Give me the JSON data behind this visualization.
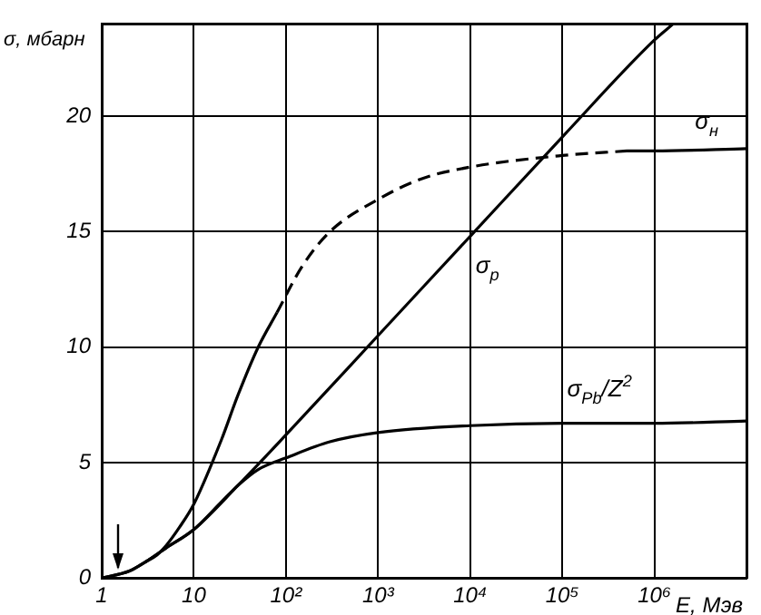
{
  "chart_data": {
    "type": "line",
    "xlabel": "E, Мэв",
    "ylabel": "σ, мбарн",
    "log": "x",
    "grid": true,
    "legend": false,
    "marker": "none",
    "xlim": [
      1,
      10000000
    ],
    "xticks": [
      1,
      10,
      {
        "value": 100,
        "label": "10²"
      },
      {
        "value": 1000,
        "label": "10³"
      },
      {
        "value": 10000,
        "label": "10⁴"
      },
      {
        "value": 100000,
        "label": "10⁵"
      },
      {
        "value": 1000000,
        "label": "10⁶"
      },
      {
        "value": 10000000,
        "label": null
      }
    ],
    "ylim": [
      0,
      24
    ],
    "yticks": [
      0,
      5,
      10,
      15,
      20
    ],
    "series": [
      {
        "name": "σ$_{p}$",
        "color": "#000000",
        "line_style": "solid",
        "x": [
          1,
          2,
          3,
          5,
          10,
          30,
          100,
          1000,
          10000,
          100000,
          1000000,
          1600000
        ],
        "values": [
          0,
          0.3,
          0.7,
          1.3,
          2.1,
          4,
          6.2,
          10.5,
          14.8,
          19.1,
          23.3,
          24
        ]
      },
      {
        "name": "σ$_{Pb}$/Z$^{2}$",
        "color": "#000000",
        "line_style": "solid",
        "x": [
          1,
          2,
          3,
          5,
          10,
          20,
          30,
          50,
          100,
          300,
          1000,
          10000,
          100000,
          1000000,
          10000000
        ],
        "values": [
          0,
          0.3,
          0.7,
          1.3,
          2.1,
          3.3,
          4,
          4.7,
          5.2,
          5.9,
          6.3,
          6.6,
          6.7,
          6.7,
          6.8
        ]
      },
      {
        "color": "#000000",
        "line_style": "solid",
        "x": [
          3,
          4,
          5,
          7,
          10,
          20,
          30,
          50,
          80
        ],
        "values": [
          0.7,
          1.0,
          1.4,
          2.2,
          3.2,
          6,
          7.9,
          10,
          11.5
        ]
      },
      {
        "color": "#000000",
        "line_style": "dashed",
        "x": [
          80,
          150,
          300,
          1000,
          3000,
          10000,
          100000,
          500000
        ],
        "values": [
          11.5,
          13.5,
          15,
          16.4,
          17.3,
          17.8,
          18.3,
          18.5
        ]
      },
      {
        "name": "σ$_{н}$",
        "color": "#000000",
        "line_style": "solid",
        "x": [
          500000,
          1000000,
          10000000
        ],
        "values": [
          18.5,
          18.5,
          18.6
        ]
      }
    ]
  }
}
